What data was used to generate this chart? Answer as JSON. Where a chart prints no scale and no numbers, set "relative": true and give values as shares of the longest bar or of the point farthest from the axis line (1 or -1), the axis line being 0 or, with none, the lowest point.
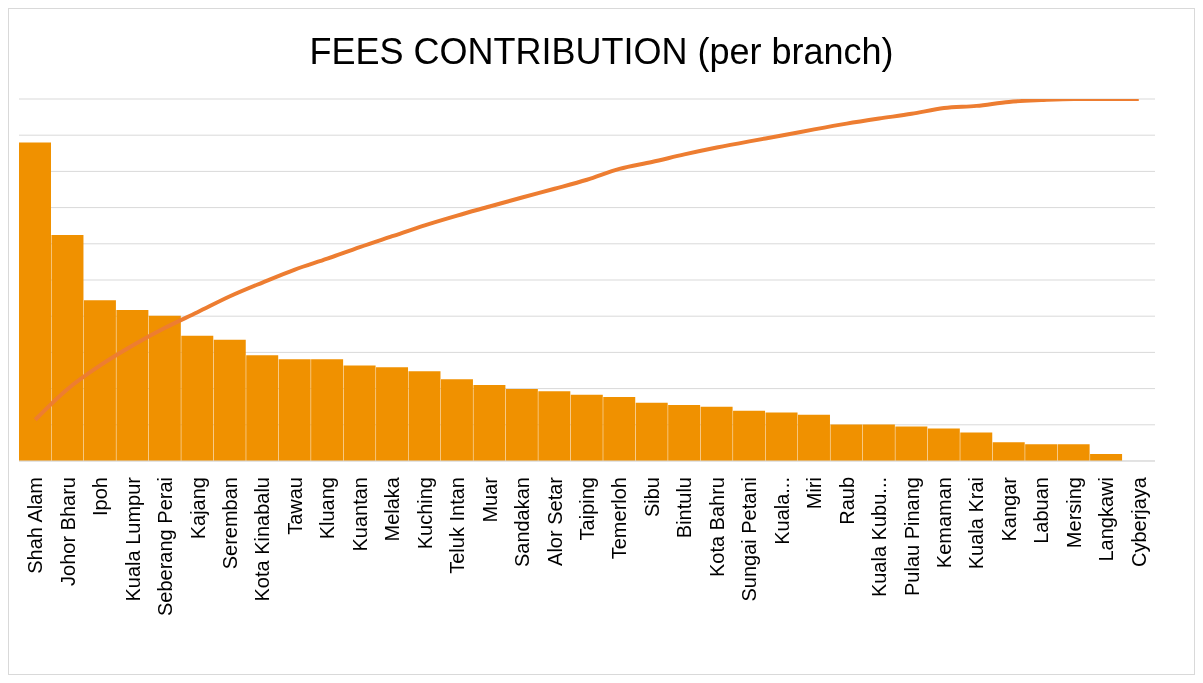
{
  "chart_data": {
    "type": "bar",
    "title": "FEES CONTRIBUTION (per branch)",
    "relative": true,
    "grid": "y",
    "legend": false,
    "categories": [
      "Shah Alam",
      "Johor Bharu",
      "Ipoh",
      "Kuala Lumpur",
      "Seberang Perai",
      "Kajang",
      "Seremban",
      "Kota Kinabalu",
      "Tawau",
      "Kluang",
      "Kuantan",
      "Melaka",
      "Kuching",
      "Teluk Intan",
      "Muar",
      "Sandakan",
      "Alor Setar",
      "Taiping",
      "Temerloh",
      "Sibu",
      "Bintulu",
      "Kota Bahru",
      "Sungai Petani",
      "Kuala...",
      "Miri",
      "Raub",
      "Kuala Kubu...",
      "Pulau Pinang",
      "Kemaman",
      "Kuala Krai",
      "Kangar",
      "Labuan",
      "Mersing",
      "Langkawi",
      "Cyberjaya"
    ],
    "series": [
      {
        "color": "#f09100",
        "values": [
          0.88,
          0.624,
          0.444,
          0.417,
          0.401,
          0.346,
          0.335,
          0.292,
          0.281,
          0.281,
          0.264,
          0.259,
          0.248,
          0.226,
          0.21,
          0.199,
          0.193,
          0.183,
          0.177,
          0.161,
          0.155,
          0.15,
          0.139,
          0.134,
          0.128,
          0.101,
          0.101,
          0.095,
          0.09,
          0.079,
          0.052,
          0.046,
          0.046,
          0.019,
          0
        ]
      },
      {
        "type": "line",
        "color": "#ed7d31",
        "values": [
          0.114,
          0.199,
          0.264,
          0.319,
          0.368,
          0.411,
          0.455,
          0.493,
          0.529,
          0.559,
          0.591,
          0.621,
          0.651,
          0.678,
          0.703,
          0.728,
          0.752,
          0.777,
          0.807,
          0.826,
          0.847,
          0.866,
          0.883,
          0.899,
          0.916,
          0.932,
          0.946,
          0.959,
          0.975,
          0.981,
          0.992,
          0.997,
          1,
          1,
          1
        ]
      }
    ]
  }
}
